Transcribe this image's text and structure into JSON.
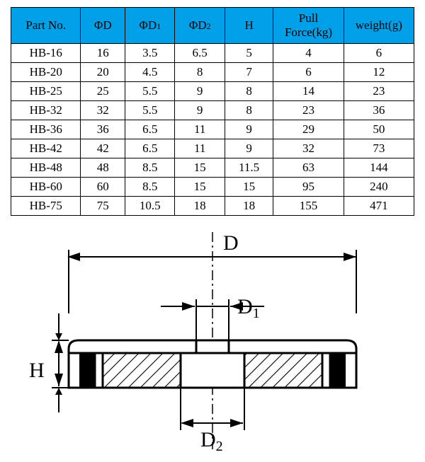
{
  "table": {
    "header_bg": "#00a0e8",
    "border_color": "#000000",
    "columns": [
      {
        "key": "part",
        "label": "Part No."
      },
      {
        "key": "d",
        "label_prefix": "Φ",
        "label": "D"
      },
      {
        "key": "d1",
        "label_prefix": "Φ",
        "label": "D",
        "sub": "1"
      },
      {
        "key": "d2",
        "label_prefix": "Φ",
        "label": "D",
        "sub": "2"
      },
      {
        "key": "h",
        "label": "H"
      },
      {
        "key": "pull",
        "label": "Pull Force(kg)"
      },
      {
        "key": "wt",
        "label": "weight(g)"
      }
    ],
    "rows": [
      {
        "part": "HB-16",
        "d": "16",
        "d1": "3.5",
        "d2": "6.5",
        "h": "5",
        "pull": "4",
        "wt": "6"
      },
      {
        "part": "HB-20",
        "d": "20",
        "d1": "4.5",
        "d2": "8",
        "h": "7",
        "pull": "6",
        "wt": "12"
      },
      {
        "part": "HB-25",
        "d": "25",
        "d1": "5.5",
        "d2": "9",
        "h": "8",
        "pull": "14",
        "wt": "23"
      },
      {
        "part": "HB-32",
        "d": "32",
        "d1": "5.5",
        "d2": "9",
        "h": "8",
        "pull": "23",
        "wt": "36"
      },
      {
        "part": "HB-36",
        "d": "36",
        "d1": "6.5",
        "d2": "11",
        "h": "9",
        "pull": "29",
        "wt": "50"
      },
      {
        "part": "HB-42",
        "d": "42",
        "d1": "6.5",
        "d2": "11",
        "h": "9",
        "pull": "32",
        "wt": "73"
      },
      {
        "part": "HB-48",
        "d": "48",
        "d1": "8.5",
        "d2": "15",
        "h": "11.5",
        "pull": "63",
        "wt": "144"
      },
      {
        "part": "HB-60",
        "d": "60",
        "d1": "8.5",
        "d2": "15",
        "h": "15",
        "pull": "95",
        "wt": "240"
      },
      {
        "part": "HB-75",
        "d": "75",
        "d1": "10.5",
        "d2": "18",
        "h": "18",
        "pull": "155",
        "wt": "471"
      }
    ]
  },
  "diagram": {
    "labels": {
      "D": "D",
      "D1_main": "D",
      "D1_sub": "1",
      "D2_main": "D",
      "D2_sub": "2",
      "H": "H"
    },
    "colors": {
      "stroke": "#000000",
      "fill_body": "#ffffff",
      "fill_black": "#000000",
      "hatch": "#000000"
    },
    "font_family": "Times New Roman, serif",
    "label_fontsize": 30
  }
}
